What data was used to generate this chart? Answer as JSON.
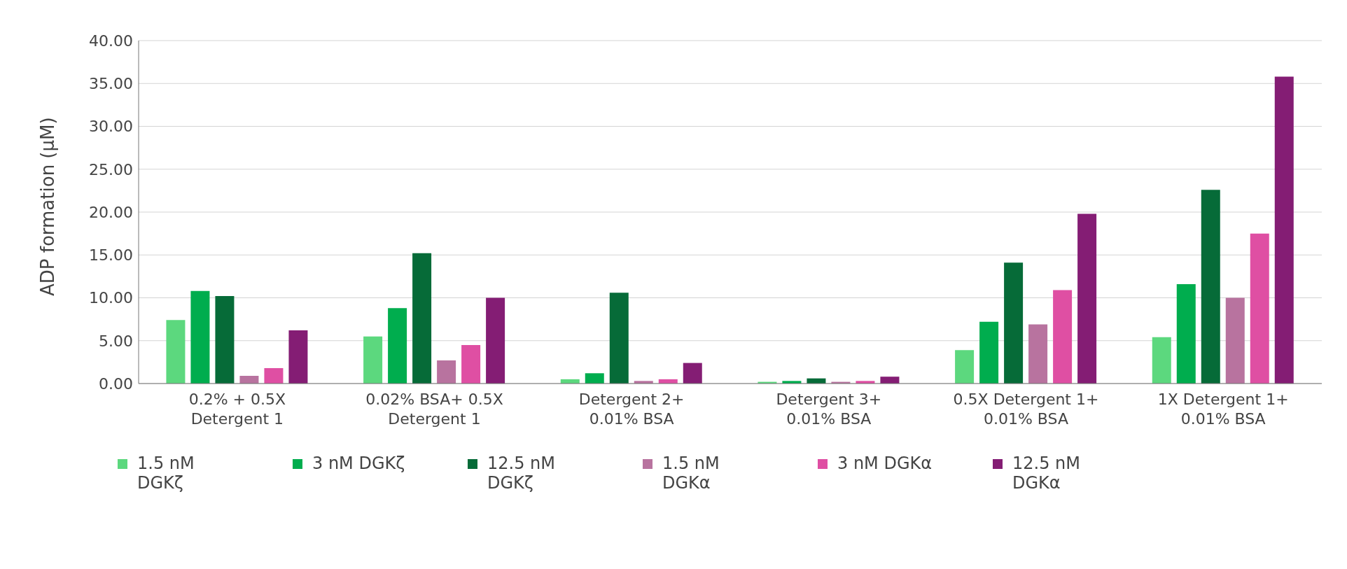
{
  "chart_data": {
    "type": "bar",
    "ylabel": "ADP formation (µM)",
    "categories": [
      "0.2% + 0.5X Detergent 1",
      "0.02% BSA+ 0.5X Detergent 1",
      "Detergent 2+ 0.01% BSA",
      "Detergent 3+ 0.01% BSA",
      "0.5X Detergent 1+ 0.01% BSA",
      "1X Detergent 1+ 0.01% BSA"
    ],
    "series": [
      {
        "name": "1.5 nM DGKζ",
        "color": "#5cd87e",
        "values": [
          7.4,
          5.5,
          0.5,
          0.2,
          3.9,
          5.4
        ]
      },
      {
        "name": "3 nM DGKζ",
        "color": "#00ad4e",
        "values": [
          10.8,
          8.8,
          1.2,
          0.3,
          7.2,
          11.6
        ]
      },
      {
        "name": "12.5 nM DGKζ",
        "color": "#066b38",
        "values": [
          10.2,
          15.2,
          10.6,
          0.6,
          14.1,
          22.6
        ]
      },
      {
        "name": "1.5 nM DGKα",
        "color": "#b8739f",
        "values": [
          0.9,
          2.7,
          0.3,
          0.2,
          6.9,
          10.0
        ]
      },
      {
        "name": "3 nM DGKα",
        "color": "#df4fa3",
        "values": [
          1.8,
          4.5,
          0.5,
          0.3,
          10.9,
          17.5
        ]
      },
      {
        "name": "12.5 nM DGKα",
        "color": "#841d74",
        "values": [
          6.2,
          10.0,
          2.4,
          0.8,
          19.8,
          35.8
        ]
      }
    ],
    "ylim": [
      0,
      40
    ],
    "yticks": [
      {
        "value": 0,
        "label": "0.00"
      },
      {
        "value": 5,
        "label": "5.00"
      },
      {
        "value": 10,
        "label": "10.00"
      },
      {
        "value": 15,
        "label": "15.00"
      },
      {
        "value": 20,
        "label": "20.00"
      },
      {
        "value": 25,
        "label": "25.00"
      },
      {
        "value": 30,
        "label": "30.00"
      },
      {
        "value": 35,
        "label": "35.00"
      },
      {
        "value": 40,
        "label": "40.00"
      }
    ],
    "grid": "y",
    "legend": "bottom"
  }
}
